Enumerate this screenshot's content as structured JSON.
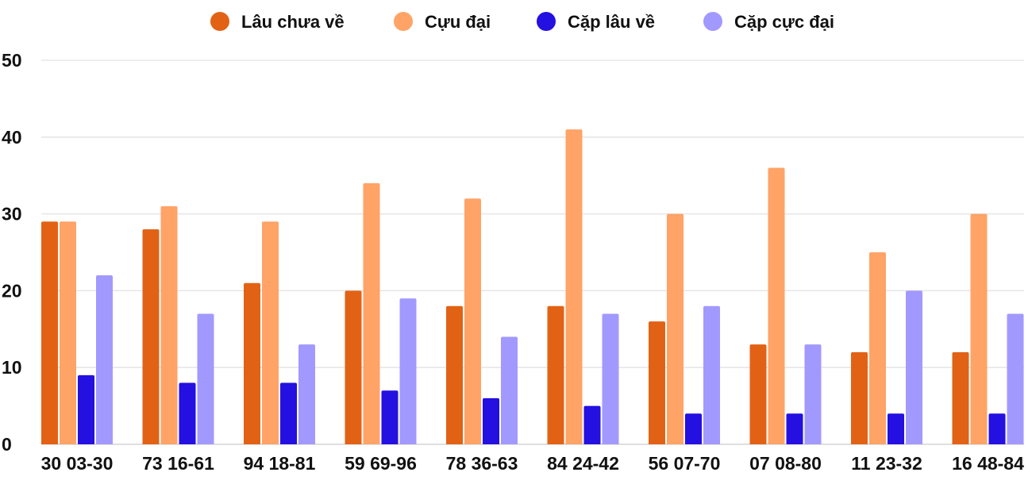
{
  "chart_data": {
    "type": "bar",
    "title": "",
    "xlabel": "",
    "ylabel": "",
    "ylim": [
      0,
      50
    ],
    "yticks": [
      0,
      10,
      20,
      30,
      40,
      50
    ],
    "grid": true,
    "legend_position": "top",
    "categories": [
      "30 03-30",
      "73 16-61",
      "94 18-81",
      "59 69-96",
      "78 36-63",
      "84 24-42",
      "56 07-70",
      "07 08-80",
      "11 23-32",
      "16 48-84"
    ],
    "series": [
      {
        "name": "Lâu chưa về",
        "color": "#E26215",
        "values": [
          29,
          28,
          21,
          20,
          18,
          18,
          16,
          13,
          12,
          12
        ]
      },
      {
        "name": "Cựu đại",
        "color": "#FFA366",
        "values": [
          29,
          31,
          29,
          34,
          32,
          41,
          30,
          36,
          25,
          30
        ]
      },
      {
        "name": "Cặp lâu về",
        "color": "#2410E0",
        "values": [
          9,
          8,
          8,
          7,
          6,
          5,
          4,
          4,
          4,
          4
        ]
      },
      {
        "name": "Cặp cực đại",
        "color": "#A299FF",
        "values": [
          22,
          17,
          13,
          19,
          14,
          17,
          18,
          13,
          20,
          17
        ]
      }
    ]
  }
}
